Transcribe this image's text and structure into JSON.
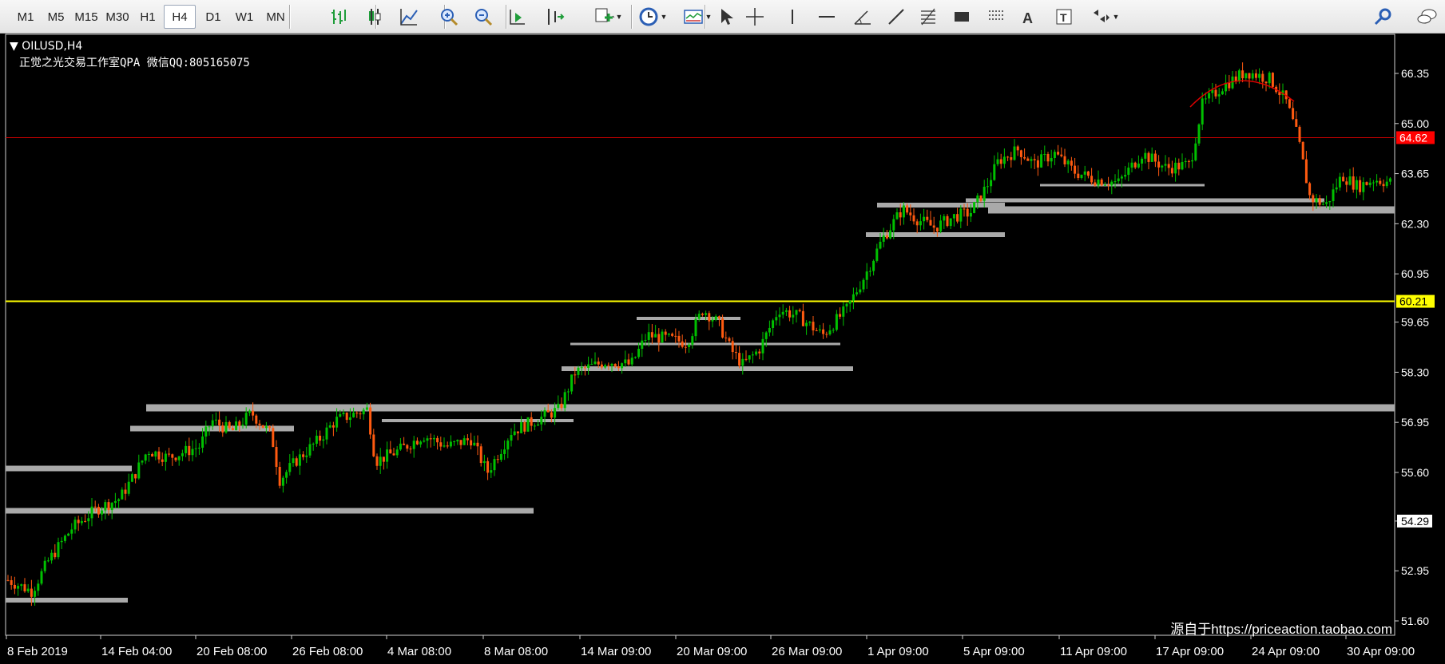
{
  "toolbar": {
    "timeframes": [
      "M1",
      "M5",
      "M15",
      "M30",
      "H1",
      "H4",
      "D1",
      "W1",
      "MN"
    ],
    "active_timeframe": "H4",
    "icons": [
      "bar-chart-icon",
      "candlestick-chart-icon",
      "line-chart-icon",
      "zoom-in-icon",
      "zoom-out-icon",
      "auto-scroll-icon",
      "chart-shift-icon",
      "add-indicator-icon",
      "periods-clock-icon",
      "templates-icon",
      "cursor-icon",
      "crosshair-icon",
      "vertical-line-icon",
      "horizontal-line-icon",
      "angle-line-icon",
      "trendline-icon",
      "fibonacci-icon",
      "rectangle-icon",
      "equidistant-channel-icon",
      "text-icon",
      "text-label-icon",
      "arrows-icon",
      "search-icon",
      "chat-icon"
    ]
  },
  "chart": {
    "symbol_label": "OILUSD,H4",
    "indicator_label": "正觉之光交易工作室QPA 微信QQ:805165075",
    "watermark": "源自于https://priceaction.taobao.com",
    "price_labels": [
      "66.35",
      "65.00",
      "63.65",
      "62.30",
      "60.95",
      "59.65",
      "58.30",
      "56.95",
      "55.60",
      "54.29",
      "52.95",
      "51.60"
    ],
    "time_labels": [
      "8 Feb 2019",
      "14 Feb 04:00",
      "20 Feb 08:00",
      "26 Feb 08:00",
      "4 Mar 08:00",
      "8 Mar 08:00",
      "14 Mar 09:00",
      "20 Mar 09:00",
      "26 Mar 09:00",
      "1 Apr 09:00",
      "5 Apr 09:00",
      "11 Apr 09:00",
      "17 Apr 09:00",
      "24 Apr 09:00",
      "30 Apr 09:00"
    ],
    "marker_labels": [
      {
        "text": "64.62",
        "bg": "#ff0000",
        "color": "#ffffff"
      },
      {
        "text": "60.21",
        "bg": "#ffff00",
        "color": "#000000"
      }
    ],
    "colors": {
      "bull": "#00c000",
      "bear": "#ff5a10",
      "red_line": "#cc0000",
      "yellow_line": "#ffff00",
      "zones": "#a9a9a9"
    }
  }
}
